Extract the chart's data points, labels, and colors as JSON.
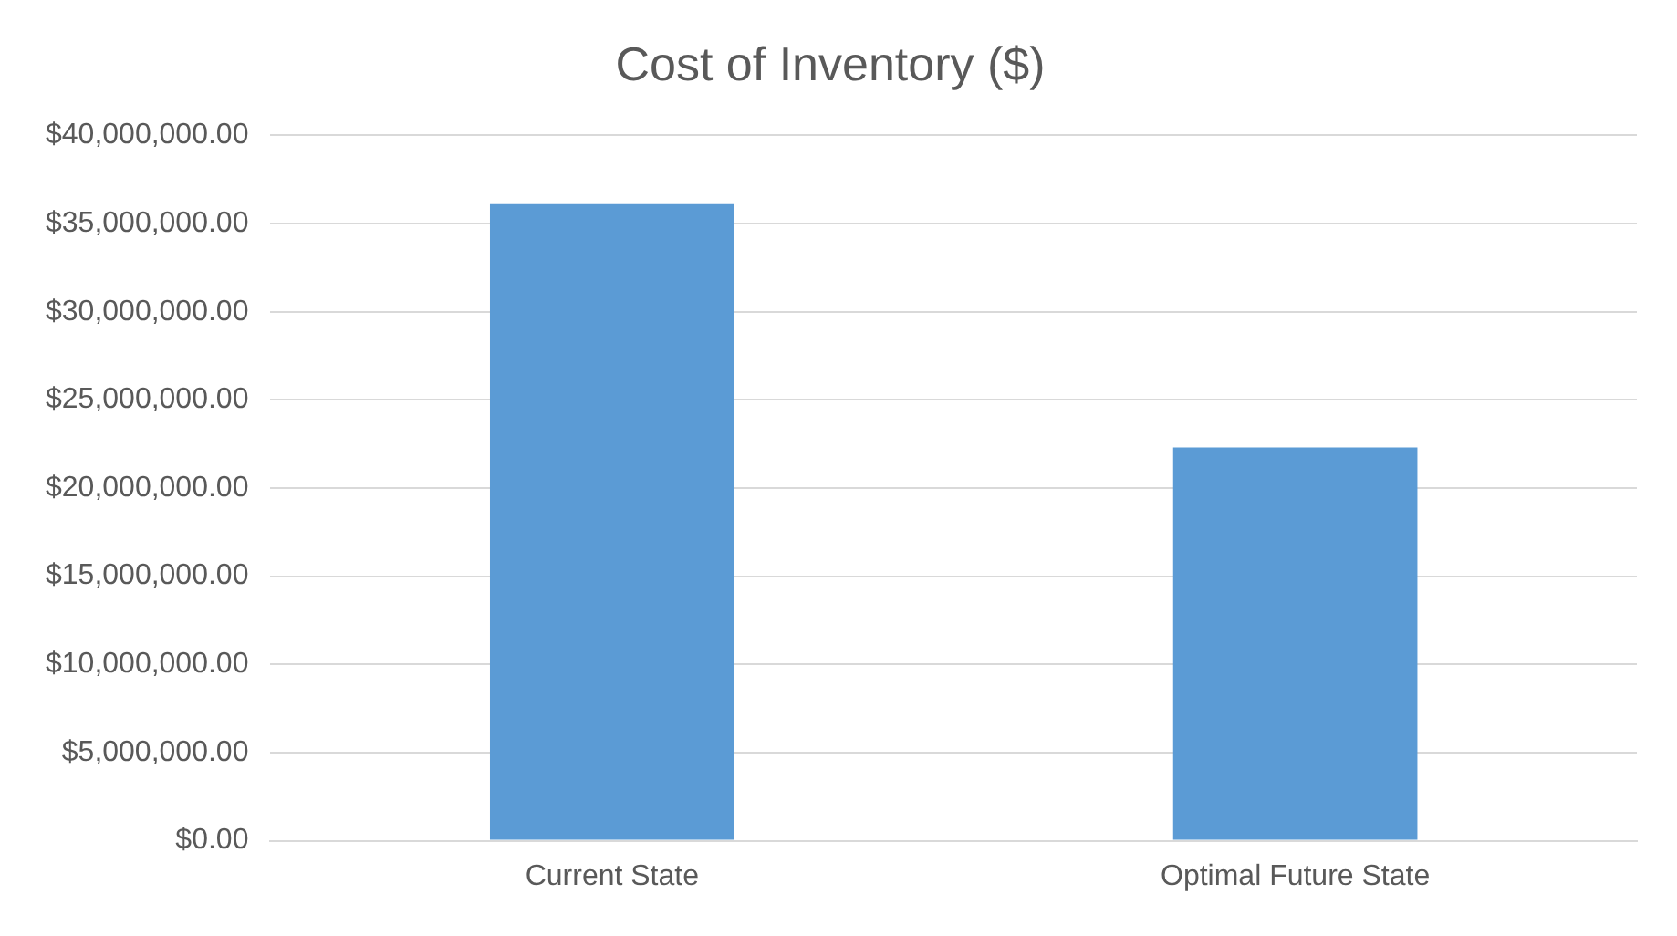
{
  "chart_data": {
    "type": "bar",
    "title": "Cost of Inventory ($)",
    "categories": [
      "Current State",
      "Optimal Future State"
    ],
    "values": [
      36100000,
      22300000
    ],
    "color": "#5b9bd5",
    "ylim": [
      0,
      40000000
    ],
    "yticks": [
      {
        "value": 0,
        "label": "$0.00"
      },
      {
        "value": 5000000,
        "label": "$5,000,000.00"
      },
      {
        "value": 10000000,
        "label": "$10,000,000.00"
      },
      {
        "value": 15000000,
        "label": "$15,000,000.00"
      },
      {
        "value": 20000000,
        "label": "$20,000,000.00"
      },
      {
        "value": 25000000,
        "label": "$25,000,000.00"
      },
      {
        "value": 30000000,
        "label": "$30,000,000.00"
      },
      {
        "value": 35000000,
        "label": "$35,000,000.00"
      },
      {
        "value": 40000000,
        "label": "$40,000,000.00"
      }
    ],
    "grid": "y",
    "legend": false
  }
}
